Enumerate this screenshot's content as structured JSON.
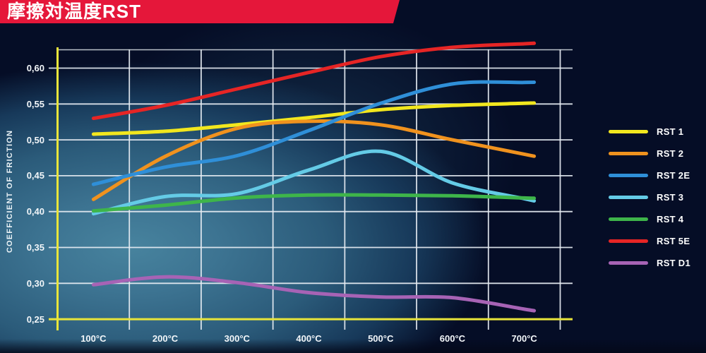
{
  "page": {
    "title": "摩擦対温度RST"
  },
  "colors": {
    "banner": "#e5173a",
    "axis": "#e9e53a",
    "grid": "#e7edf3",
    "text": "#ffffff",
    "background_base": "#050d26",
    "background_glow": "#3d7086"
  },
  "chart_data": {
    "type": "line",
    "title": "摩擦対温度RST",
    "ylabel": "COEFFICIENT OF FRICTION",
    "xlabel": "",
    "x": [
      100,
      200,
      300,
      400,
      500,
      600,
      700
    ],
    "x_tick_labels": [
      "100°C",
      "200°C",
      "300°C",
      "400°C",
      "500°C",
      "600°C",
      "700°C"
    ],
    "y_ticks": [
      0.25,
      0.3,
      0.35,
      0.4,
      0.45,
      0.5,
      0.55,
      0.6
    ],
    "y_tick_labels": [
      "0,25",
      "0,30",
      "0,35",
      "0,40",
      "0,45",
      "0,50",
      "0,55",
      "0,60"
    ],
    "xlim": [
      50,
      750
    ],
    "ylim": [
      0.25,
      0.64
    ],
    "grid": true,
    "legend_position": "right",
    "series": [
      {
        "name": "RST 1",
        "color": "#f2e71e",
        "values": [
          0.508,
          0.512,
          0.521,
          0.531,
          0.542,
          0.548,
          0.551
        ]
      },
      {
        "name": "RST 2",
        "color": "#f0921e",
        "values": [
          0.417,
          0.477,
          0.516,
          0.526,
          0.521,
          0.5,
          0.48
        ]
      },
      {
        "name": "RST 2E",
        "color": "#2f8fd8",
        "values": [
          0.438,
          0.462,
          0.478,
          0.513,
          0.551,
          0.578,
          0.58
        ]
      },
      {
        "name": "RST 3",
        "color": "#64cbe6",
        "values": [
          0.397,
          0.421,
          0.425,
          0.458,
          0.484,
          0.44,
          0.418
        ]
      },
      {
        "name": "RST 4",
        "color": "#3eb54a",
        "values": [
          0.401,
          0.409,
          0.419,
          0.423,
          0.423,
          0.422,
          0.419
        ]
      },
      {
        "name": "RST 5E",
        "color": "#e62525",
        "values": [
          0.53,
          0.548,
          0.571,
          0.594,
          0.616,
          0.629,
          0.634
        ]
      },
      {
        "name": "RST D1",
        "color": "#a763b5",
        "values": [
          0.298,
          0.309,
          0.301,
          0.287,
          0.281,
          0.28,
          0.264
        ]
      }
    ]
  }
}
